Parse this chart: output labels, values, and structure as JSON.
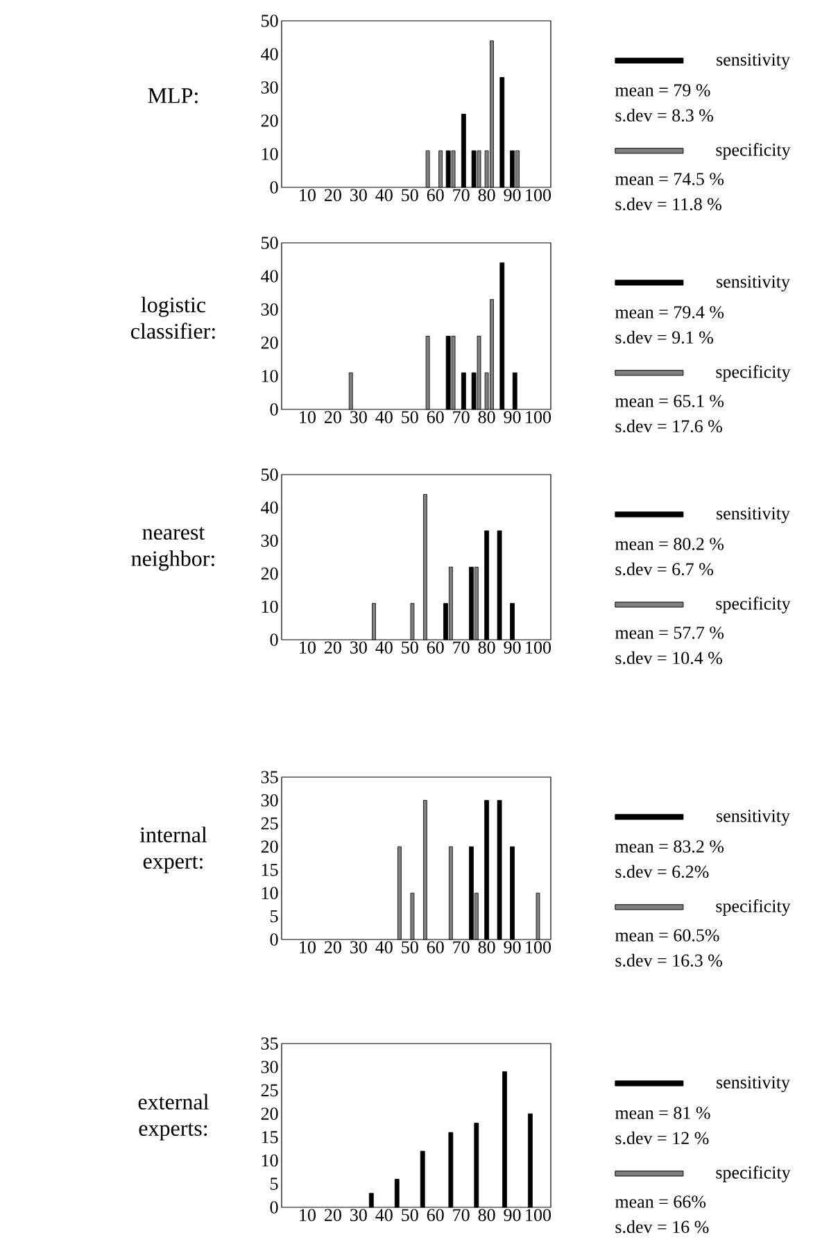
{
  "chart_data": [
    {
      "type": "bar",
      "title": "MLP:",
      "xlim": [
        0,
        105
      ],
      "xticks": [
        10,
        20,
        30,
        40,
        50,
        60,
        70,
        80,
        90,
        100
      ],
      "ylim": [
        0,
        50
      ],
      "yticks": [
        0,
        10,
        20,
        30,
        40,
        50
      ],
      "legend": "right",
      "series": [
        {
          "name": "sensitivity",
          "color": "#000000",
          "x": [
            65,
            71,
            75,
            86,
            90
          ],
          "values": [
            11,
            22,
            11,
            33,
            11
          ]
        },
        {
          "name": "specificity",
          "color": "#808080",
          "x": [
            57,
            62,
            67,
            77,
            80,
            82,
            92
          ],
          "values": [
            11,
            11,
            11,
            11,
            11,
            44,
            11
          ]
        }
      ],
      "annotations": [
        "mean = 79 %",
        "s.dev = 8.3 %",
        "mean = 74.5 %",
        "s.dev = 11.8 %"
      ]
    },
    {
      "type": "bar",
      "title": "logistic classifier:",
      "xlim": [
        0,
        105
      ],
      "xticks": [
        10,
        20,
        30,
        40,
        50,
        60,
        70,
        80,
        90,
        100
      ],
      "ylim": [
        0,
        50
      ],
      "yticks": [
        0,
        10,
        20,
        30,
        40,
        50
      ],
      "legend": "right",
      "series": [
        {
          "name": "sensitivity",
          "color": "#000000",
          "x": [
            65,
            71,
            75,
            86,
            91
          ],
          "values": [
            22,
            11,
            11,
            44,
            11
          ]
        },
        {
          "name": "specificity",
          "color": "#808080",
          "x": [
            27,
            57,
            67,
            77,
            80,
            82
          ],
          "values": [
            11,
            22,
            22,
            22,
            11,
            33
          ]
        }
      ],
      "annotations": [
        "mean = 79.4 %",
        "s.dev = 9.1 %",
        "mean = 65.1 %",
        "s.dev = 17.6 %"
      ]
    },
    {
      "type": "bar",
      "title": "nearest neighbor:",
      "xlim": [
        0,
        105
      ],
      "xticks": [
        10,
        20,
        30,
        40,
        50,
        60,
        70,
        80,
        90,
        100
      ],
      "ylim": [
        0,
        50
      ],
      "yticks": [
        0,
        10,
        20,
        30,
        40,
        50
      ],
      "legend": "right",
      "series": [
        {
          "name": "sensitivity",
          "color": "#000000",
          "x": [
            64,
            74,
            80,
            85,
            90
          ],
          "values": [
            11,
            22,
            33,
            33,
            11
          ]
        },
        {
          "name": "specificity",
          "color": "#808080",
          "x": [
            36,
            51,
            56,
            66,
            76
          ],
          "values": [
            11,
            11,
            44,
            22,
            22
          ]
        }
      ],
      "annotations": [
        "mean = 80.2 %",
        "s.dev = 6.7 %",
        "mean = 57.7 %",
        "s.dev = 10.4 %"
      ]
    },
    {
      "type": "bar",
      "title": "internal expert:",
      "xlim": [
        0,
        105
      ],
      "xticks": [
        10,
        20,
        30,
        40,
        50,
        60,
        70,
        80,
        90,
        100
      ],
      "ylim": [
        0,
        35
      ],
      "yticks": [
        0,
        5,
        10,
        15,
        20,
        25,
        30,
        35
      ],
      "legend": "right",
      "series": [
        {
          "name": "sensitivity",
          "color": "#000000",
          "x": [
            74,
            80,
            85,
            90
          ],
          "values": [
            20,
            30,
            30,
            20
          ]
        },
        {
          "name": "specificity",
          "color": "#808080",
          "x": [
            46,
            51,
            56,
            66,
            76,
            100
          ],
          "values": [
            20,
            10,
            30,
            20,
            10,
            10
          ]
        }
      ],
      "annotations": [
        "mean = 83.2 %",
        "s.dev = 6.2%",
        "mean = 60.5%",
        "s.dev = 16.3 %"
      ]
    },
    {
      "type": "bar",
      "title": "external experts:",
      "xlim": [
        0,
        105
      ],
      "xticks": [
        10,
        20,
        30,
        40,
        50,
        60,
        70,
        80,
        90,
        100
      ],
      "ylim": [
        0,
        35
      ],
      "yticks": [
        0,
        5,
        10,
        15,
        20,
        25,
        30,
        35
      ],
      "legend": "right",
      "series": [
        {
          "name": "sensitivity",
          "color": "#000000",
          "x": [
            35,
            45,
            55,
            66,
            76,
            87,
            97
          ],
          "values": [
            3,
            6,
            12,
            16,
            18,
            29,
            20
          ]
        },
        {
          "name": "specificity",
          "color": "#808080"
        }
      ],
      "annotations": [
        "mean = 81 %",
        "s.dev = 12 %",
        "mean = 66%",
        "s.dev = 16 %"
      ]
    }
  ]
}
